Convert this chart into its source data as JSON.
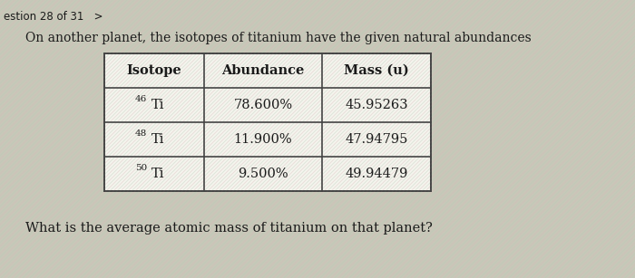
{
  "nav_text": "estion 28 of 31   >",
  "question_text": "On another planet, the isotopes of titanium have the given natural abundances",
  "question_text2": "What is the average atomic mass of titanium on that planet?",
  "col_headers": [
    "Isotope",
    "Abundance",
    "Mass (u)"
  ],
  "rows": [
    {
      "isotope": "46",
      "element": "Ti",
      "abundance": "78.600%",
      "mass": "45.95263"
    },
    {
      "isotope": "48",
      "element": "Ti",
      "abundance": "11.900%",
      "mass": "47.94795"
    },
    {
      "isotope": "50",
      "element": "Ti",
      "abundance": "9.500%",
      "mass": "49.94479"
    }
  ],
  "bg_color": "#c8c8b8",
  "table_bg": "#f5f5ee",
  "border_color": "#444444",
  "text_color": "#1a1a1a",
  "nav_color": "#1a1a1a",
  "fig_width": 7.0,
  "fig_height": 3.07
}
